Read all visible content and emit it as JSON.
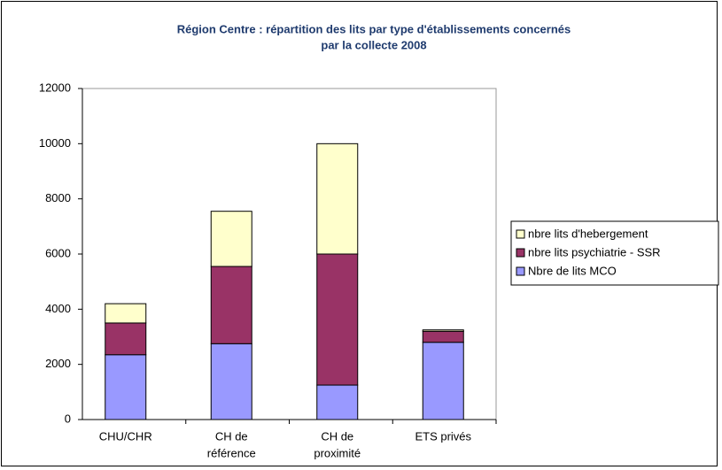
{
  "chart_data": {
    "type": "stacked_bar",
    "title": [
      "Région Centre : répartition des lits par type d'établissements concernés",
      "par la collecte 2008"
    ],
    "categories": [
      [
        "CHU/CHR"
      ],
      [
        "CH de",
        "référence"
      ],
      [
        "CH  de",
        "proximité"
      ],
      [
        "ETS privés"
      ]
    ],
    "series": [
      {
        "name": "Nbre de lits MCO",
        "color": "#9999ff",
        "values": [
          2350,
          2750,
          1250,
          2800
        ]
      },
      {
        "name": "nbre  lits psychiatrie - SSR",
        "color": "#993366",
        "values": [
          1150,
          2800,
          4750,
          400
        ]
      },
      {
        "name": "nbre  lits d'hebergement",
        "color": "#ffffcc",
        "values": [
          700,
          2000,
          4000,
          50
        ]
      }
    ],
    "ylim": [
      0,
      12000
    ],
    "yticks": [
      0,
      2000,
      4000,
      6000,
      8000,
      10000,
      12000
    ],
    "grid": false,
    "legend": "right"
  }
}
